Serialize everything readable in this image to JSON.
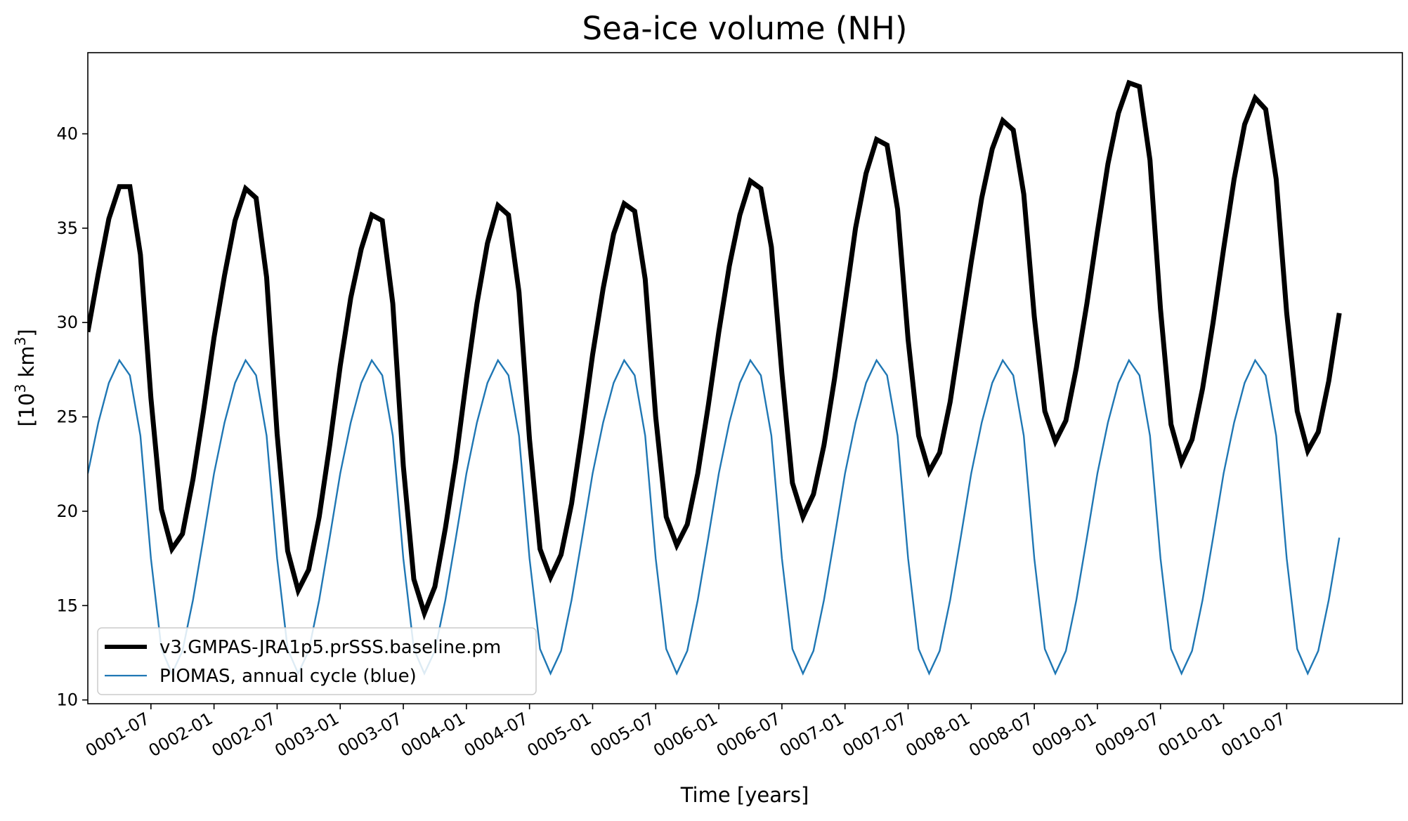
{
  "chart_data": {
    "type": "line",
    "title": "Sea-ice volume (NH)",
    "xlabel": "Time [years]",
    "ylabel": "[10³ km³]",
    "ylabel_parts": {
      "open": "[10",
      "sup1": "3",
      "mid": " km",
      "sup2": "3",
      "close": "]"
    },
    "xlim": [
      0,
      125
    ],
    "ylim": [
      9.8,
      44.3
    ],
    "yticks": [
      10,
      15,
      20,
      25,
      30,
      35,
      40
    ],
    "xticks": [
      {
        "value": 6,
        "label": "0001-07"
      },
      {
        "value": 12,
        "label": "0002-01"
      },
      {
        "value": 18,
        "label": "0002-07"
      },
      {
        "value": 24,
        "label": "0003-01"
      },
      {
        "value": 30,
        "label": "0003-07"
      },
      {
        "value": 36,
        "label": "0004-01"
      },
      {
        "value": 42,
        "label": "0004-07"
      },
      {
        "value": 48,
        "label": "0005-01"
      },
      {
        "value": 54,
        "label": "0005-07"
      },
      {
        "value": 60,
        "label": "0006-01"
      },
      {
        "value": 66,
        "label": "0006-07"
      },
      {
        "value": 72,
        "label": "0007-01"
      },
      {
        "value": 78,
        "label": "0007-07"
      },
      {
        "value": 84,
        "label": "0008-01"
      },
      {
        "value": 90,
        "label": "0008-07"
      },
      {
        "value": 96,
        "label": "0009-01"
      },
      {
        "value": 102,
        "label": "0009-07"
      },
      {
        "value": 108,
        "label": "0010-01"
      },
      {
        "value": 114,
        "label": "0010-07"
      }
    ],
    "x_unit_note": "months since 0001-01",
    "grid": false,
    "legend_position": "bottom-left",
    "series": [
      {
        "name": "v3.GMPAS-JRA1p5.prSSS.baseline.pm",
        "color": "#000000",
        "width": "thick",
        "values": [
          29.5,
          32.6,
          35.5,
          37.2,
          37.2,
          33.6,
          26.0,
          20.1,
          18.0,
          18.8,
          21.7,
          25.3,
          29.2,
          32.5,
          35.4,
          37.1,
          36.6,
          32.4,
          24.1,
          17.9,
          15.8,
          16.9,
          19.7,
          23.5,
          27.7,
          31.3,
          33.9,
          35.7,
          35.4,
          31.0,
          22.4,
          16.4,
          14.6,
          16.0,
          19.1,
          22.7,
          27.0,
          31.0,
          34.2,
          36.2,
          35.7,
          31.6,
          23.8,
          18.0,
          16.5,
          17.7,
          20.4,
          24.2,
          28.3,
          31.8,
          34.7,
          36.3,
          35.9,
          32.3,
          25.0,
          19.7,
          18.2,
          19.3,
          22.0,
          25.6,
          29.5,
          33.0,
          35.7,
          37.5,
          37.1,
          34.0,
          27.3,
          21.5,
          19.7,
          20.9,
          23.5,
          27.0,
          31.0,
          35.0,
          37.9,
          39.7,
          39.4,
          36.0,
          29.1,
          24.0,
          22.1,
          23.1,
          25.8,
          29.5,
          33.2,
          36.6,
          39.2,
          40.7,
          40.2,
          36.8,
          30.3,
          25.3,
          23.7,
          24.8,
          27.6,
          31.0,
          34.8,
          38.4,
          41.1,
          42.7,
          42.5,
          38.6,
          30.7,
          24.6,
          22.6,
          23.8,
          26.5,
          30.0,
          33.9,
          37.6,
          40.5,
          41.9,
          41.3,
          37.6,
          30.5,
          25.3,
          23.2,
          24.2,
          26.9,
          30.5
        ]
      },
      {
        "name": "PIOMAS, annual cycle (blue)",
        "color": "#1f77b4",
        "width": "thin",
        "values": [
          22.0,
          24.7,
          26.8,
          28.0,
          27.2,
          24.0,
          17.5,
          12.7,
          11.4,
          12.6,
          15.3,
          18.6,
          22.0,
          24.7,
          26.8,
          28.0,
          27.2,
          24.0,
          17.5,
          12.7,
          11.4,
          12.6,
          15.3,
          18.6,
          22.0,
          24.7,
          26.8,
          28.0,
          27.2,
          24.0,
          17.5,
          12.7,
          11.4,
          12.6,
          15.3,
          18.6,
          22.0,
          24.7,
          26.8,
          28.0,
          27.2,
          24.0,
          17.5,
          12.7,
          11.4,
          12.6,
          15.3,
          18.6,
          22.0,
          24.7,
          26.8,
          28.0,
          27.2,
          24.0,
          17.5,
          12.7,
          11.4,
          12.6,
          15.3,
          18.6,
          22.0,
          24.7,
          26.8,
          28.0,
          27.2,
          24.0,
          17.5,
          12.7,
          11.4,
          12.6,
          15.3,
          18.6,
          22.0,
          24.7,
          26.8,
          28.0,
          27.2,
          24.0,
          17.5,
          12.7,
          11.4,
          12.6,
          15.3,
          18.6,
          22.0,
          24.7,
          26.8,
          28.0,
          27.2,
          24.0,
          17.5,
          12.7,
          11.4,
          12.6,
          15.3,
          18.6,
          22.0,
          24.7,
          26.8,
          28.0,
          27.2,
          24.0,
          17.5,
          12.7,
          11.4,
          12.6,
          15.3,
          18.6,
          22.0,
          24.7,
          26.8,
          28.0,
          27.2,
          24.0,
          17.5,
          12.7,
          11.4,
          12.6,
          15.3,
          18.6
        ]
      }
    ]
  }
}
